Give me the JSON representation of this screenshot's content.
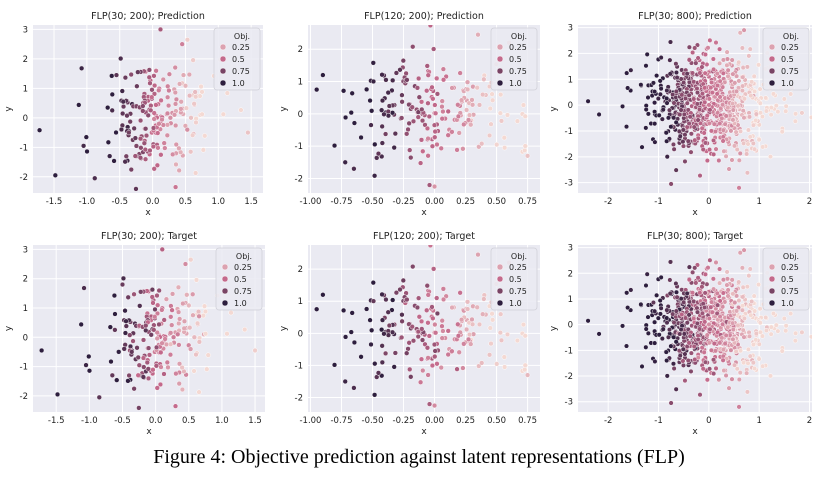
{
  "caption": "Figure 4: Objective prediction against latent representations (FLP)",
  "chart_data": [
    {
      "type": "scatter",
      "title": "FLP(30; 200); Prediction",
      "xlabel": "x",
      "ylabel": "y",
      "xlim": [
        -1.82,
        1.68
      ],
      "ylim": [
        -2.55,
        3.15
      ],
      "xticks": [
        "-1.5",
        "-1.0",
        "-0.5",
        "0.0",
        "0.5",
        "1.0",
        "1.5"
      ],
      "yticks": [
        "-2",
        "-1",
        "0",
        "1",
        "2",
        "3"
      ],
      "grid": true,
      "legend": "top-right",
      "legend_title": "Obj.",
      "legend_values": [
        "0.25",
        "0.5",
        "0.75",
        "1.0"
      ],
      "hue_description": "color scales with Obj. value 0.0 (light pink) to 1.0 (dark purple)",
      "n_points": 200,
      "cloud": {
        "cx": 0.05,
        "cy": 0.0,
        "sx": 0.42,
        "sy": 0.85
      },
      "points": [
        {
          "x": -1.72,
          "y": -0.42,
          "obj": 1.0
        },
        {
          "x": -1.48,
          "y": -1.95,
          "obj": 1.0
        },
        {
          "x": -1.08,
          "y": 1.68,
          "obj": 0.95
        },
        {
          "x": -1.05,
          "y": -0.95,
          "obj": 0.92
        },
        {
          "x": -0.88,
          "y": -2.05,
          "obj": 0.9
        },
        {
          "x": -0.55,
          "y": 1.45,
          "obj": 0.85
        },
        {
          "x": 0.12,
          "y": 3.0,
          "obj": 0.6
        },
        {
          "x": 0.45,
          "y": 2.5,
          "obj": 0.4
        },
        {
          "x": 0.35,
          "y": -2.35,
          "obj": 0.45
        },
        {
          "x": 1.45,
          "y": -0.5,
          "obj": 0.1
        }
      ]
    },
    {
      "type": "scatter",
      "title": "FLP(120; 200); Prediction",
      "xlabel": "x",
      "ylabel": "y",
      "xlim": [
        -1.02,
        0.85
      ],
      "ylim": [
        -2.45,
        2.75
      ],
      "xticks": [
        "-1.00",
        "-0.75",
        "-0.50",
        "-0.25",
        "0.00",
        "0.25",
        "0.50",
        "0.75"
      ],
      "yticks": [
        "-2",
        "-1",
        "0",
        "1",
        "2"
      ],
      "grid": true,
      "legend": "top-right",
      "legend_title": "Obj.",
      "legend_values": [
        "0.25",
        "0.5",
        "0.75",
        "1.0"
      ],
      "hue_description": "color scales with Obj. value 0.0 (light pink) to 1.0 (dark purple)",
      "n_points": 200,
      "cloud": {
        "cx": 0.0,
        "cy": 0.05,
        "sx": 0.32,
        "sy": 0.85
      },
      "points": [
        {
          "x": -0.95,
          "y": 0.75,
          "obj": 1.0
        },
        {
          "x": -0.9,
          "y": 1.2,
          "obj": 1.0
        },
        {
          "x": -0.72,
          "y": -1.5,
          "obj": 0.95
        },
        {
          "x": -0.65,
          "y": -1.7,
          "obj": 0.9
        },
        {
          "x": 0.35,
          "y": 2.45,
          "obj": 0.2
        },
        {
          "x": 0.75,
          "y": -1.3,
          "obj": 0.1
        },
        {
          "x": 0.0,
          "y": -2.25,
          "obj": 0.3
        },
        {
          "x": 0.6,
          "y": 2.2,
          "obj": 0.15
        }
      ]
    },
    {
      "type": "scatter",
      "title": "FLP(30; 800); Prediction",
      "xlabel": "x",
      "ylabel": "y",
      "xlim": [
        -2.6,
        2.05
      ],
      "ylim": [
        -3.4,
        3.1
      ],
      "xticks": [
        "-2",
        "-1",
        "0",
        "1",
        "2"
      ],
      "yticks": [
        "-3",
        "-2",
        "-1",
        "0",
        "1",
        "2",
        "3"
      ],
      "grid": true,
      "legend": "top-right",
      "legend_title": "Obj.",
      "legend_values": [
        "0.25",
        "0.5",
        "0.75",
        "1.0"
      ],
      "hue_description": "color scales with Obj. value 0.0 (light pink) to 1.0 (dark purple)",
      "n_points": 800,
      "cloud": {
        "cx": 0.0,
        "cy": 0.0,
        "sx": 0.6,
        "sy": 0.95
      },
      "points": [
        {
          "x": -2.4,
          "y": 0.15,
          "obj": 1.0
        },
        {
          "x": -1.55,
          "y": 1.35,
          "obj": 0.95
        },
        {
          "x": -0.75,
          "y": -3.05,
          "obj": 0.7
        },
        {
          "x": 0.6,
          "y": -3.2,
          "obj": 0.4
        },
        {
          "x": 1.85,
          "y": -0.3,
          "obj": 0.05
        },
        {
          "x": 0.7,
          "y": 2.9,
          "obj": 0.3
        }
      ]
    },
    {
      "type": "scatter",
      "title": "FLP(30; 200); Target",
      "xlabel": "x",
      "ylabel": "y",
      "xlim": [
        -1.85,
        1.65
      ],
      "ylim": [
        -2.55,
        3.15
      ],
      "xticks": [
        "-1.5",
        "-1.0",
        "-0.5",
        "0.0",
        "0.5",
        "1.0",
        "1.5"
      ],
      "yticks": [
        "-2",
        "-1",
        "0",
        "1",
        "2",
        "3"
      ],
      "grid": true,
      "legend": "top-right",
      "legend_title": "Obj.",
      "legend_values": [
        "0.25",
        "0.5",
        "0.75",
        "1.0"
      ],
      "hue_description": "color scales with Obj. value 0.0 (light pink) to 1.0 (dark purple)",
      "n_points": 200,
      "cloud": {
        "cx": 0.05,
        "cy": 0.0,
        "sx": 0.42,
        "sy": 0.85
      },
      "points": [
        {
          "x": -1.72,
          "y": -0.45,
          "obj": 1.0
        },
        {
          "x": -1.48,
          "y": -1.95,
          "obj": 1.0
        },
        {
          "x": -1.08,
          "y": 1.68,
          "obj": 0.9
        },
        {
          "x": -1.05,
          "y": -0.95,
          "obj": 0.95
        },
        {
          "x": -0.85,
          "y": -2.05,
          "obj": 0.85
        },
        {
          "x": -0.5,
          "y": 1.8,
          "obj": 0.8
        },
        {
          "x": 0.1,
          "y": 3.0,
          "obj": 0.55
        },
        {
          "x": 0.45,
          "y": 2.5,
          "obj": 0.35
        },
        {
          "x": 0.3,
          "y": -2.35,
          "obj": 0.5
        },
        {
          "x": 1.5,
          "y": -0.45,
          "obj": 0.05
        }
      ]
    },
    {
      "type": "scatter",
      "title": "FLP(120; 200); Target",
      "xlabel": "x",
      "ylabel": "y",
      "xlim": [
        -1.02,
        0.85
      ],
      "ylim": [
        -2.45,
        2.75
      ],
      "xticks": [
        "-1.00",
        "-0.75",
        "-0.50",
        "-0.25",
        "0.00",
        "0.25",
        "0.50",
        "0.75"
      ],
      "yticks": [
        "-2",
        "-1",
        "0",
        "1",
        "2"
      ],
      "grid": true,
      "legend": "top-right",
      "legend_title": "Obj.",
      "legend_values": [
        "0.25",
        "0.5",
        "0.75",
        "1.0"
      ],
      "hue_description": "color scales with Obj. value 0.0 (light pink) to 1.0 (dark purple)",
      "n_points": 200,
      "cloud": {
        "cx": 0.0,
        "cy": 0.05,
        "sx": 0.32,
        "sy": 0.85
      },
      "points": [
        {
          "x": -0.95,
          "y": 0.75,
          "obj": 1.0
        },
        {
          "x": -0.9,
          "y": 1.2,
          "obj": 1.0
        },
        {
          "x": -0.72,
          "y": -1.5,
          "obj": 0.95
        },
        {
          "x": -0.65,
          "y": -1.7,
          "obj": 0.9
        },
        {
          "x": 0.35,
          "y": 2.45,
          "obj": 0.25
        },
        {
          "x": 0.75,
          "y": -1.3,
          "obj": 0.15
        },
        {
          "x": 0.0,
          "y": -2.25,
          "obj": 0.35
        },
        {
          "x": 0.6,
          "y": 2.2,
          "obj": 0.2
        }
      ]
    },
    {
      "type": "scatter",
      "title": "FLP(30; 800); Target",
      "xlabel": "x",
      "ylabel": "y",
      "xlim": [
        -2.6,
        2.05
      ],
      "ylim": [
        -3.4,
        3.1
      ],
      "xticks": [
        "-2",
        "-1",
        "0",
        "1",
        "2"
      ],
      "yticks": [
        "-3",
        "-2",
        "-1",
        "0",
        "1",
        "2",
        "3"
      ],
      "grid": true,
      "legend": "top-right",
      "legend_title": "Obj.",
      "legend_values": [
        "0.25",
        "0.5",
        "0.75",
        "1.0"
      ],
      "hue_description": "color scales with Obj. value 0.0 (light pink) to 1.0 (dark purple)",
      "n_points": 800,
      "cloud": {
        "cx": 0.0,
        "cy": 0.0,
        "sx": 0.6,
        "sy": 0.95
      },
      "points": [
        {
          "x": -2.4,
          "y": 0.15,
          "obj": 1.0
        },
        {
          "x": -1.55,
          "y": 1.35,
          "obj": 0.95
        },
        {
          "x": -0.75,
          "y": -3.05,
          "obj": 0.7
        },
        {
          "x": 0.6,
          "y": -3.2,
          "obj": 0.4
        },
        {
          "x": 1.85,
          "y": -0.3,
          "obj": 0.05
        },
        {
          "x": 0.7,
          "y": 2.9,
          "obj": 0.3
        }
      ]
    }
  ],
  "colors": {
    "panel_bg": "#eaeaf2",
    "grid": "#ffffff",
    "obj_low": "#f4d9d3",
    "obj_high": "#2d1e3e"
  }
}
